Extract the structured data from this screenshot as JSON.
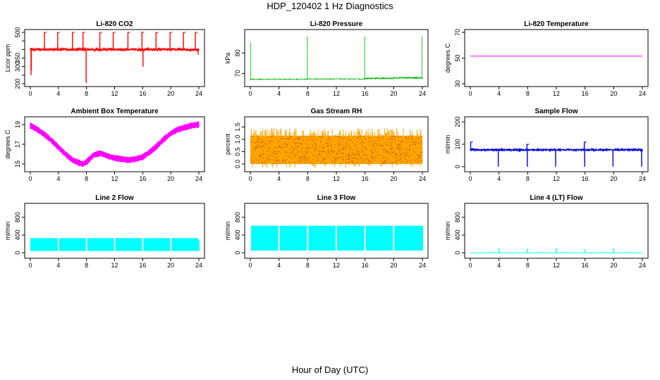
{
  "page": {
    "title": "HDP_120402  1 Hz Diagnostics",
    "x_axis_label": "Hour of Day (UTC)"
  },
  "chart_data": [
    {
      "type": "line",
      "title": "Li-820 CO2",
      "ylabel": "Licor ppm",
      "color": "#ff0000",
      "xlim": [
        0,
        24
      ],
      "ylim": [
        200,
        500
      ],
      "x_ticks": [
        0,
        4,
        8,
        12,
        16,
        20,
        24
      ],
      "y_ticks": [
        200,
        250,
        300,
        350,
        400,
        450,
        500
      ],
      "y_tick_labels": [
        "200",
        "",
        "300",
        "350",
        "",
        "",
        "500"
      ],
      "series": [
        {
          "style": "noisy",
          "x_range": [
            0,
            24
          ],
          "base": 400,
          "noise": 6,
          "spikes": [
            {
              "x": 0.1,
              "y": 250
            },
            {
              "x": 0.15,
              "y": 280
            },
            {
              "x": 2,
              "y": 500
            },
            {
              "x": 3.9,
              "y": 500
            },
            {
              "x": 6,
              "y": 500
            },
            {
              "x": 7.5,
              "y": 500
            },
            {
              "x": 7.95,
              "y": 205
            },
            {
              "x": 9.9,
              "y": 500
            },
            {
              "x": 11.8,
              "y": 500
            },
            {
              "x": 13.9,
              "y": 500
            },
            {
              "x": 15.9,
              "y": 500
            },
            {
              "x": 16.05,
              "y": 300
            },
            {
              "x": 17.9,
              "y": 500
            },
            {
              "x": 19.9,
              "y": 500
            },
            {
              "x": 21.8,
              "y": 500
            },
            {
              "x": 23.5,
              "y": 500
            },
            {
              "x": 23.9,
              "y": 370
            }
          ]
        }
      ]
    },
    {
      "type": "line",
      "title": "Li-820 Pressure",
      "ylabel": "kPa",
      "color": "#00b000",
      "xlim": [
        0,
        24
      ],
      "ylim": [
        65,
        90
      ],
      "x_ticks": [
        0,
        4,
        8,
        12,
        16,
        20,
        24
      ],
      "y_ticks": [
        70,
        80
      ],
      "y_tick_labels": [
        "70",
        "80"
      ],
      "series": [
        {
          "style": "step",
          "segments": [
            {
              "x0": 0,
              "x1": 8,
              "y": 67.2
            },
            {
              "x0": 8,
              "x1": 16,
              "y": 67.3
            },
            {
              "x0": 16,
              "x1": 20,
              "y": 67.6
            },
            {
              "x0": 20,
              "x1": 24,
              "y": 67.9
            }
          ],
          "noise": 0.15,
          "spikes": [
            {
              "x": 0.05,
              "y": 85
            },
            {
              "x": 7.95,
              "y": 88
            },
            {
              "x": 15.95,
              "y": 88
            },
            {
              "x": 23.95,
              "y": 88
            }
          ]
        }
      ]
    },
    {
      "type": "line",
      "title": "Li-820 Temperature",
      "ylabel": "degrees C",
      "color": "#ff00ff",
      "xlim": [
        0,
        24
      ],
      "ylim": [
        30,
        70
      ],
      "x_ticks": [
        0,
        4,
        8,
        12,
        16,
        20,
        24
      ],
      "y_ticks": [
        30,
        50,
        70
      ],
      "y_tick_labels": [
        "30",
        "50",
        "70"
      ],
      "series": [
        {
          "style": "flat",
          "x_range": [
            0,
            24
          ],
          "y": 51.5
        }
      ]
    },
    {
      "type": "line",
      "title": "Ambient Box Temperature",
      "ylabel": "degrees C",
      "color": "#ff00ff",
      "xlim": [
        0,
        24
      ],
      "ylim": [
        14.5,
        19.5
      ],
      "x_ticks": [
        0,
        4,
        8,
        12,
        16,
        20,
        24
      ],
      "y_ticks": [
        15,
        17,
        19
      ],
      "y_tick_labels": [
        "15",
        "17",
        "19"
      ],
      "series": [
        {
          "style": "band",
          "width": 0.5,
          "points": [
            [
              0,
              18.9
            ],
            [
              1,
              18.5
            ],
            [
              2,
              18.0
            ],
            [
              3,
              17.4
            ],
            [
              4,
              16.7
            ],
            [
              5,
              16.0
            ],
            [
              6,
              15.4
            ],
            [
              7,
              15.1
            ],
            [
              7.5,
              15.0
            ],
            [
              8,
              15.2
            ],
            [
              9,
              15.9
            ],
            [
              10,
              16.1
            ],
            [
              11,
              15.8
            ],
            [
              12,
              15.6
            ],
            [
              13,
              15.5
            ],
            [
              14,
              15.4
            ],
            [
              15,
              15.5
            ],
            [
              16,
              15.7
            ],
            [
              17,
              16.2
            ],
            [
              18,
              16.8
            ],
            [
              19,
              17.5
            ],
            [
              20,
              18.1
            ],
            [
              21,
              18.5
            ],
            [
              22,
              18.7
            ],
            [
              23,
              18.9
            ],
            [
              24,
              19.0
            ]
          ]
        }
      ]
    },
    {
      "type": "line",
      "title": "Gas Stream RH",
      "ylabel": "percent",
      "color": "#ffa500",
      "dot_color": "#8b0000",
      "xlim": [
        0,
        24
      ],
      "ylim": [
        -0.2,
        1.8
      ],
      "x_ticks": [
        0,
        4,
        8,
        12,
        16,
        20,
        24
      ],
      "y_ticks": [
        0.0,
        0.5,
        1.0,
        1.5
      ],
      "y_tick_labels": [
        "0.0",
        "0.5",
        "1.0",
        "1.5"
      ],
      "series": [
        {
          "style": "block",
          "x_range": [
            0,
            24
          ],
          "low": 0.0,
          "high": 1.15,
          "peak": 1.45,
          "dip": -0.15
        }
      ]
    },
    {
      "type": "line",
      "title": "Sample Flow",
      "ylabel": "ml/min",
      "color": "#0000dd",
      "xlim": [
        0,
        24
      ],
      "ylim": [
        -10,
        210
      ],
      "x_ticks": [
        0,
        4,
        8,
        12,
        16,
        20,
        24
      ],
      "y_ticks": [
        0,
        100,
        200
      ],
      "y_tick_labels": [
        "0",
        "100",
        "200"
      ],
      "series": [
        {
          "style": "noisy",
          "x_range": [
            0,
            24
          ],
          "base": 75,
          "noise": 3,
          "spikes": [
            {
              "x": 0.05,
              "y": 110
            },
            {
              "x": 3.9,
              "y": 0
            },
            {
              "x": 7.9,
              "y": 100
            },
            {
              "x": 7.95,
              "y": 0
            },
            {
              "x": 11.9,
              "y": 0
            },
            {
              "x": 15.9,
              "y": 110
            },
            {
              "x": 15.95,
              "y": 0
            },
            {
              "x": 19.9,
              "y": 0
            },
            {
              "x": 23.9,
              "y": 0
            }
          ]
        }
      ]
    },
    {
      "type": "area",
      "title": "Line 2 Flow",
      "ylabel": "ml/min",
      "color": "#00ffff",
      "xlim": [
        0,
        24
      ],
      "ylim": [
        -60,
        1050
      ],
      "x_ticks": [
        0,
        4,
        8,
        12,
        16,
        20,
        24
      ],
      "y_ticks": [
        0,
        400,
        800
      ],
      "y_tick_labels": [
        "0",
        "400",
        "800"
      ],
      "series": [
        {
          "style": "fill",
          "low": 40,
          "high": 330,
          "segments": [
            [
              0,
              3.9
            ],
            [
              4.1,
              7.9
            ],
            [
              8.1,
              11.9
            ],
            [
              12.1,
              15.9
            ],
            [
              16.1,
              19.9
            ],
            [
              20.1,
              23.9
            ]
          ],
          "tail": [
            24.0,
            280
          ]
        }
      ]
    },
    {
      "type": "area",
      "title": "Line 3 Flow",
      "ylabel": "ml/min",
      "color": "#00ffff",
      "xlim": [
        0,
        24
      ],
      "ylim": [
        -60,
        1050
      ],
      "x_ticks": [
        0,
        4,
        8,
        12,
        16,
        20,
        24
      ],
      "y_ticks": [
        0,
        400,
        800
      ],
      "y_tick_labels": [
        "0",
        "400",
        "800"
      ],
      "series": [
        {
          "style": "fill",
          "low": 50,
          "high": 610,
          "segments": [
            [
              0.1,
              3.9
            ],
            [
              4.1,
              7.9
            ],
            [
              8.1,
              11.9
            ],
            [
              12.1,
              15.9
            ],
            [
              16.1,
              19.9
            ],
            [
              20.1,
              24.1
            ]
          ],
          "tail": null
        }
      ]
    },
    {
      "type": "line",
      "title": "Line 4 (LT) Flow",
      "ylabel": "ml/min",
      "color": "#00ffff",
      "xlim": [
        0,
        24
      ],
      "ylim": [
        -60,
        1050
      ],
      "x_ticks": [
        0,
        4,
        8,
        12,
        16,
        20,
        24
      ],
      "y_ticks": [
        0,
        400,
        800
      ],
      "y_tick_labels": [
        "0",
        "400",
        "800"
      ],
      "series": [
        {
          "style": "flat",
          "x_range": [
            0,
            24
          ],
          "y": 0,
          "spikes": [
            {
              "x": 4,
              "y": 100
            },
            {
              "x": 8,
              "y": 90
            },
            {
              "x": 12,
              "y": 100
            },
            {
              "x": 16,
              "y": 80
            },
            {
              "x": 20,
              "y": 95
            }
          ]
        }
      ]
    }
  ]
}
